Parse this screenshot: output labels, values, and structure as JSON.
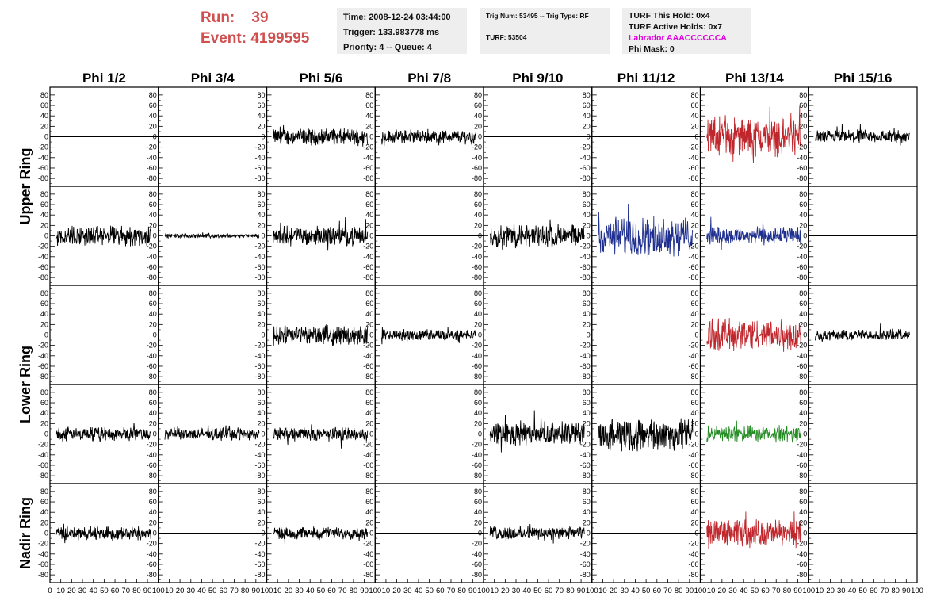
{
  "header": {
    "run_label": "Run:",
    "run_value": "39",
    "event_label": "Event:",
    "event_value": "4199595"
  },
  "info_box_1": {
    "time": "Time: 2008-12-24 03:44:00",
    "trigger": "Trigger: 133.983778 ms",
    "priority": "Priority: 4 -- Queue: 4"
  },
  "info_box_2": {
    "trig_line": "Trig Num: 53495 -- Trig Type: RF",
    "turf_line": "TURF: 53504"
  },
  "info_box_3": {
    "hold": "TURF This Hold: 0x4",
    "active_holds": "TURF Active Holds: 0x7",
    "labrador": "Labrador AAACCCCCCA",
    "phi_mask": "Phi Mask: 0"
  },
  "colors": {
    "header_red": "#d05050",
    "trace_black": "#000000",
    "trace_red": "#c0272d",
    "trace_blue": "#1f2f8f",
    "trace_green": "#228b22",
    "labrador_magenta": "#e000e0",
    "info_bg": "#eeeeee"
  },
  "chart_data": {
    "type": "line",
    "columns": [
      "Phi 1/2",
      "Phi 3/4",
      "Phi 5/6",
      "Phi 7/8",
      "Phi 9/10",
      "Phi 11/12",
      "Phi 13/14",
      "Phi 15/16"
    ],
    "ring_labels": [
      "Upper Ring",
      "Lower Ring",
      "Nadir Ring"
    ],
    "ylim": [
      -95,
      95
    ],
    "yticks": [
      80,
      60,
      40,
      20,
      0,
      -20,
      -40,
      -60,
      -80
    ],
    "xlim": [
      0,
      100
    ],
    "xticks": [
      0,
      10,
      20,
      30,
      40,
      50,
      60,
      70,
      80,
      90,
      100
    ],
    "panels": [
      [
        "flat",
        "flat",
        "black:12",
        "black:10",
        "flat",
        "flat",
        "red:28",
        "black:10"
      ],
      [
        "black:15",
        "black:3",
        "black:14",
        "flat",
        "black:17",
        "blue:28",
        "blue:13",
        "flat"
      ],
      [
        "flat",
        "flat",
        "black:14",
        "black:8",
        "flat",
        "flat",
        "red:24",
        "black:8"
      ],
      [
        "black:10",
        "black:9",
        "black:10",
        "flat",
        "black:17",
        "black:24",
        "green:12",
        "flat"
      ],
      [
        "black:10",
        "flat",
        "black:9",
        "flat",
        "black:10",
        "flat",
        "red:20",
        "flat"
      ]
    ]
  }
}
